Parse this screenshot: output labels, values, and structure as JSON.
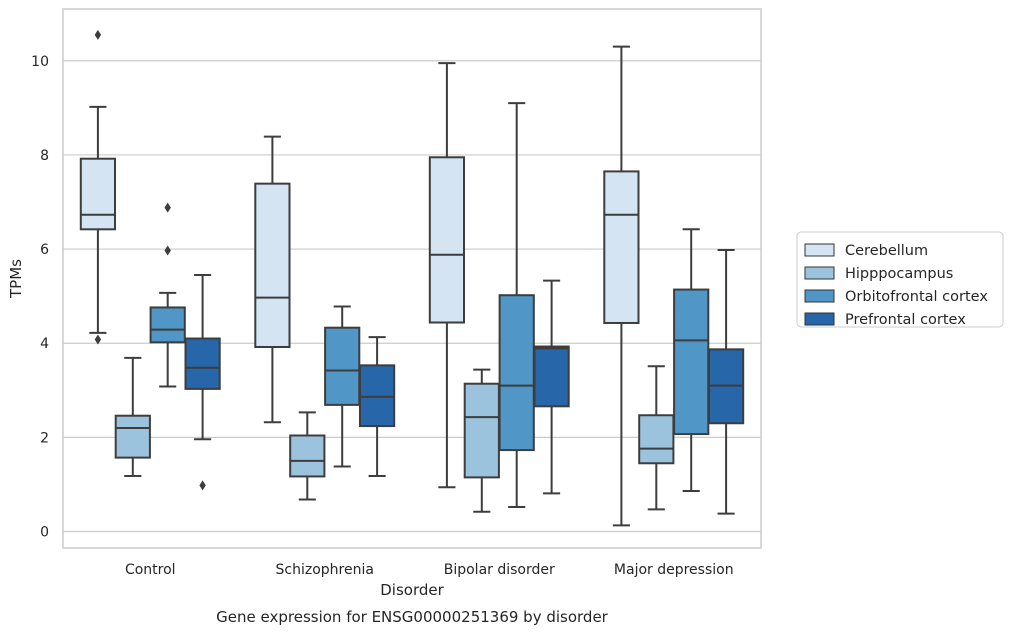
{
  "chart_data": {
    "type": "box",
    "title": "",
    "caption": "Gene expression for ENSG00000251369 by disorder",
    "xlabel": "Disorder",
    "ylabel": "TPMs",
    "ylim": [
      -0.35,
      11.1
    ],
    "yticks": [
      0,
      2,
      4,
      6,
      8,
      10
    ],
    "grid": true,
    "legend_position": "right",
    "categories": [
      "Control",
      "Schizophrenia",
      "Bipolar disorder",
      "Major depression"
    ],
    "series": [
      {
        "name": "Cerebellum",
        "color": "#d4e4f2",
        "boxes": [
          {
            "whisker_low": 4.22,
            "q1": 6.42,
            "median": 6.73,
            "q3": 7.92,
            "whisker_high": 9.02,
            "outliers": [
              10.55,
              4.08
            ]
          },
          {
            "whisker_low": 2.32,
            "q1": 3.92,
            "median": 4.97,
            "q3": 7.39,
            "whisker_high": 8.39,
            "outliers": []
          },
          {
            "whisker_low": 0.94,
            "q1": 4.44,
            "median": 5.88,
            "q3": 7.95,
            "whisker_high": 9.95,
            "outliers": []
          },
          {
            "whisker_low": 0.13,
            "q1": 4.43,
            "median": 6.73,
            "q3": 7.65,
            "whisker_high": 10.3,
            "outliers": []
          }
        ]
      },
      {
        "name": "Hipppocampus",
        "color": "#9cc3dd",
        "boxes": [
          {
            "whisker_low": 1.18,
            "q1": 1.57,
            "median": 2.2,
            "q3": 2.46,
            "whisker_high": 3.69,
            "outliers": []
          },
          {
            "whisker_low": 0.68,
            "q1": 1.17,
            "median": 1.5,
            "q3": 2.04,
            "whisker_high": 2.53,
            "outliers": []
          },
          {
            "whisker_low": 0.42,
            "q1": 1.15,
            "median": 2.43,
            "q3": 3.14,
            "whisker_high": 3.44,
            "outliers": []
          },
          {
            "whisker_low": 0.47,
            "q1": 1.45,
            "median": 1.76,
            "q3": 2.47,
            "whisker_high": 3.51,
            "outliers": []
          }
        ]
      },
      {
        "name": "Orbitofrontal cortex",
        "color": "#5096c6",
        "boxes": [
          {
            "whisker_low": 3.08,
            "q1": 4.02,
            "median": 4.29,
            "q3": 4.76,
            "whisker_high": 5.07,
            "outliers": [
              6.88,
              5.97
            ]
          },
          {
            "whisker_low": 1.38,
            "q1": 2.69,
            "median": 3.42,
            "q3": 4.33,
            "whisker_high": 4.78,
            "outliers": []
          },
          {
            "whisker_low": 0.52,
            "q1": 1.73,
            "median": 3.1,
            "q3": 5.02,
            "whisker_high": 9.1,
            "outliers": []
          },
          {
            "whisker_low": 0.86,
            "q1": 2.07,
            "median": 4.06,
            "q3": 5.14,
            "whisker_high": 6.42,
            "outliers": []
          }
        ]
      },
      {
        "name": "Prefrontal cortex",
        "color": "#2666a9",
        "boxes": [
          {
            "whisker_low": 1.96,
            "q1": 3.03,
            "median": 3.48,
            "q3": 4.1,
            "whisker_high": 5.45,
            "outliers": [
              0.98
            ]
          },
          {
            "whisker_low": 1.18,
            "q1": 2.24,
            "median": 2.86,
            "q3": 3.53,
            "whisker_high": 4.13,
            "outliers": []
          },
          {
            "whisker_low": 0.81,
            "q1": 2.66,
            "median": 3.89,
            "q3": 3.93,
            "whisker_high": 5.33,
            "outliers": []
          },
          {
            "whisker_low": 0.38,
            "q1": 2.3,
            "median": 3.1,
            "q3": 3.87,
            "whisker_high": 5.98,
            "outliers": []
          }
        ]
      }
    ]
  }
}
